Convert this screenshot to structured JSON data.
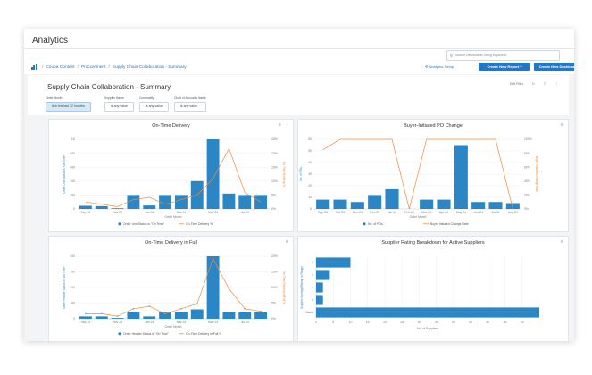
{
  "app": {
    "title": "Analytics"
  },
  "search": {
    "placeholder": "Search Dashboards Using Keywords"
  },
  "breadcrumb": {
    "items": [
      "Coupa Content",
      "Procurement",
      "Supply Chain Collaboration - Summary"
    ]
  },
  "header": {
    "analytics_setup": "Analytics Setup",
    "create_report": "Create New Report",
    "create_dashboard": "Create New Dashboard"
  },
  "dashboard": {
    "title": "Supply Chain Collaboration - Summary",
    "tools": {
      "edit": "Edit Filter"
    },
    "filters": [
      {
        "label": "Order Month",
        "value": "is in the last 12 months"
      },
      {
        "label": "Supplier Name",
        "value": "is any value"
      },
      {
        "label": "Commodity",
        "value": "is any value"
      },
      {
        "label": "Chart of Accounts Name",
        "value": "is any value"
      }
    ]
  },
  "chart_data": [
    {
      "type": "bar",
      "title": "On-Time Delivery",
      "categories": [
        "Sep 23",
        "Oct 23",
        "Nov 23",
        "Dec 23",
        "Jan 24",
        "Feb 24",
        "Mar 24",
        "Apr 24",
        "May 24",
        "Jun 24",
        "Jul 24",
        "Aug 24"
      ],
      "x_tick_labels": [
        "Sep 23",
        "Nov 23",
        "Jan 24",
        "Mar 24",
        "May 24",
        "Jul 24"
      ],
      "series": [
        {
          "name": "Order Line Status is \"On Time\"",
          "kind": "bar",
          "axis": "left",
          "values": [
            45,
            40,
            10,
            200,
            50,
            200,
            200,
            400,
            1000,
            220,
            200,
            200
          ]
        },
        {
          "name": "On-Time Delivery %",
          "kind": "line",
          "axis": "right",
          "values": [
            3,
            2,
            1,
            4,
            5,
            2,
            4,
            6,
            13,
            26,
            7,
            3
          ]
        }
      ],
      "xlabel": "Order Month",
      "ylabel": "Order Line Status is \"On Time\"",
      "y2label": "On-Time Delivery %",
      "ylim": [
        0,
        1000
      ],
      "y2lim": [
        0,
        30
      ],
      "y_ticks": [
        "0",
        "200",
        "400",
        "600",
        "800",
        "1K"
      ],
      "y2_ticks": [
        "0%",
        "5%",
        "10%",
        "15%",
        "20%",
        "25%"
      ],
      "legend": "bottom"
    },
    {
      "type": "bar",
      "title": "Buyer-Initiated PO Change",
      "categories": [
        "Sep 23",
        "Oct 23",
        "Nov 23",
        "Dec 23",
        "Jan 24",
        "Feb 24",
        "Mar 24",
        "Apr 24",
        "May 24",
        "Jun 24",
        "Jul 24",
        "Aug 24"
      ],
      "x_tick_labels": [
        "Sep 23",
        "Oct 23",
        "Nov 23",
        "Dec 23",
        "Jan 24",
        "Feb 24",
        "Mar 24",
        "Apr 24",
        "May 24",
        "Jun 24",
        "Jul 24",
        "Aug 24"
      ],
      "series": [
        {
          "name": "No. of POs",
          "kind": "bar",
          "axis": "left",
          "values": [
            8,
            8,
            6,
            12,
            17,
            0,
            8,
            8,
            55,
            6,
            6,
            5
          ]
        },
        {
          "name": "Buyer Initiated Change Rate",
          "kind": "line",
          "axis": "right",
          "values": [
            85,
            100,
            100,
            100,
            100,
            0,
            100,
            100,
            100,
            100,
            100,
            0
          ]
        }
      ],
      "xlabel": "Order Month",
      "ylabel": "No. of POs",
      "y2label": "Buyer Initiated Change Rate",
      "ylim": [
        0,
        60
      ],
      "y2lim": [
        0,
        100
      ],
      "y_ticks": [
        "0",
        "10",
        "20",
        "30",
        "40",
        "50",
        "60"
      ],
      "y2_ticks": [
        "0%",
        "20%",
        "40%",
        "60%",
        "80%",
        "100%"
      ],
      "legend": "bottom"
    },
    {
      "type": "bar",
      "title": "On-Time Delivery in Full",
      "categories": [
        "Sep 23",
        "Oct 23",
        "Nov 23",
        "Dec 23",
        "Jan 24",
        "Feb 24",
        "Mar 24",
        "Apr 24",
        "May 24",
        "Jun 24",
        "Jul 24",
        "Aug 24"
      ],
      "x_tick_labels": [
        "Sep 23",
        "Nov 23",
        "Jan 24",
        "Mar 24",
        "May 24",
        "Jul 24"
      ],
      "series": [
        {
          "name": "Order Header Status is \"On Time\"",
          "kind": "bar",
          "axis": "left",
          "values": [
            15,
            15,
            5,
            40,
            15,
            40,
            40,
            60,
            400,
            40,
            40,
            40
          ]
        },
        {
          "name": "On-Time Delivery in Full %",
          "kind": "line",
          "axis": "right",
          "values": [
            2,
            2,
            1,
            4,
            5,
            2,
            4,
            6,
            24,
            12,
            4,
            3
          ]
        }
      ],
      "xlabel": "Order Month",
      "ylabel": "Order Header Status is \"On Time\"",
      "y2label": "On-Time Delivery in Full %",
      "ylim": [
        0,
        400
      ],
      "y2lim": [
        0,
        25
      ],
      "y_ticks": [
        "0",
        "100",
        "200",
        "300",
        "400"
      ],
      "y2_ticks": [
        "0%",
        "5%",
        "10%",
        "15%",
        "20%"
      ],
      "legend": "bottom"
    },
    {
      "type": "bar",
      "orientation": "horizontal",
      "title": "Supplier Rating Breakdown for Active Suppliers",
      "categories": [
        "2",
        "3",
        "4",
        "5",
        "Blank"
      ],
      "series": [
        {
          "name": "No. of Suppliers",
          "kind": "bar",
          "values": [
            10,
            4,
            2,
            2,
            65
          ]
        }
      ],
      "xlabel": "No. of Suppliers",
      "ylabel": "Supplier Average Rating in Range",
      "xlim": [
        0,
        65
      ],
      "x_ticks": [
        "0",
        "5",
        "10",
        "15",
        "20",
        "25",
        "30",
        "35",
        "40",
        "45",
        "50",
        "55",
        "60"
      ]
    }
  ]
}
